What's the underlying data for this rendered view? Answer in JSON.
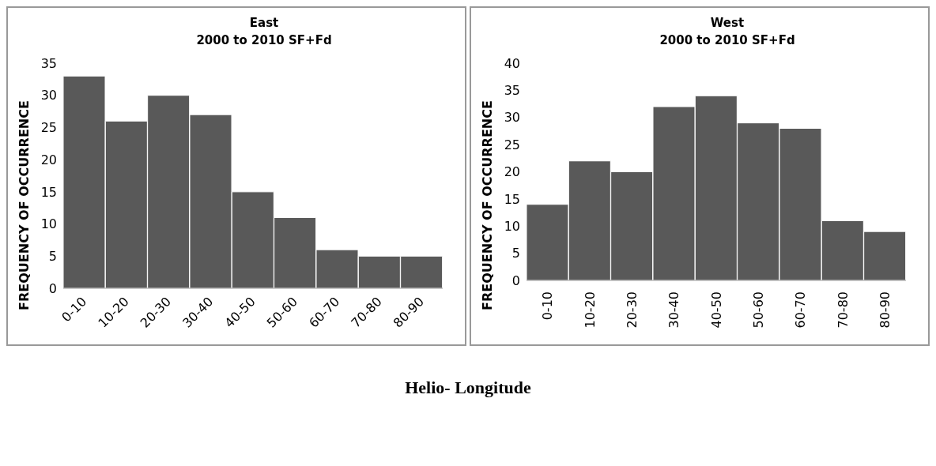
{
  "chart_data": [
    {
      "type": "bar",
      "title": "East\n2000 to 2010 SF+Fd",
      "ylabel": "FREQUENCY OF OCCURRENCE",
      "categories": [
        "0-10",
        "10-20",
        "20-30",
        "30-40",
        "40-50",
        "50-60",
        "60-70",
        "70-80",
        "80-90"
      ],
      "values": [
        33,
        26,
        30,
        27,
        15,
        11,
        6,
        5,
        5
      ],
      "color": "#595959",
      "ylim": [
        0,
        35
      ],
      "yticks": [
        0,
        5,
        10,
        15,
        20,
        25,
        30,
        35
      ],
      "grid": false,
      "legend": false
    },
    {
      "type": "bar",
      "title": "West\n2000 to 2010 SF+Fd",
      "ylabel": "FREQUENCY OF OCCURRENCE",
      "categories": [
        "0-10",
        "10-20",
        "20-30",
        "30-40",
        "40-50",
        "50-60",
        "60-70",
        "70-80",
        "80-90"
      ],
      "values": [
        14,
        22,
        20,
        32,
        34,
        29,
        28,
        11,
        9
      ],
      "color": "#595959",
      "ylim": [
        0,
        40
      ],
      "yticks": [
        0,
        5,
        10,
        15,
        20,
        25,
        30,
        35,
        40
      ],
      "grid": false,
      "legend": false,
      "annotations": [
        "Helio- Longitude"
      ]
    }
  ]
}
